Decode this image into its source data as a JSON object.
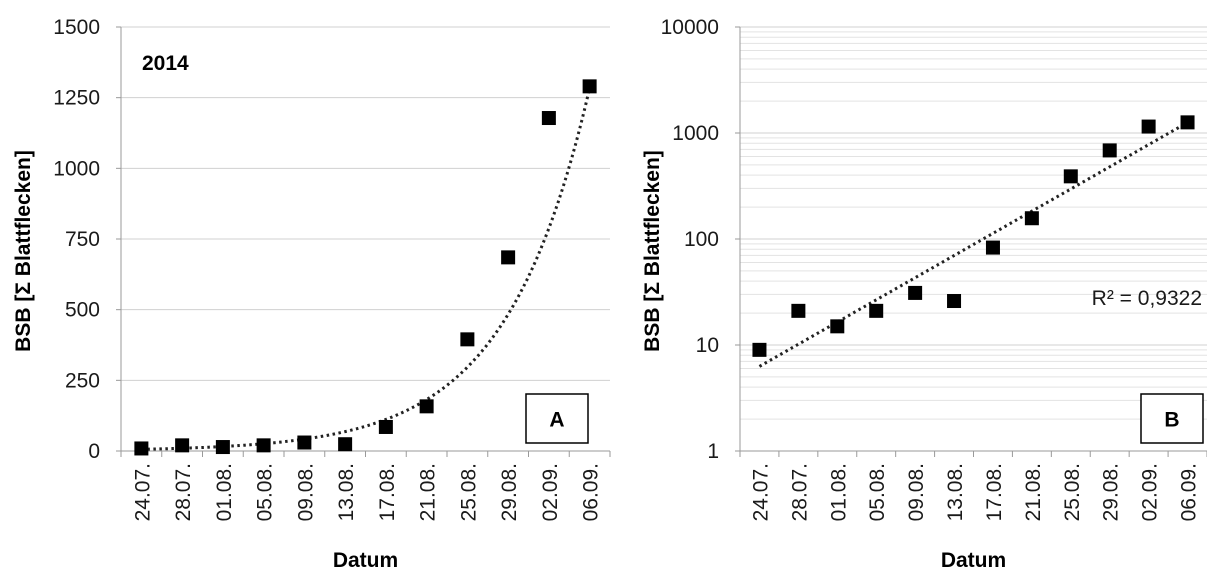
{
  "chart_data": [
    {
      "type": "scatter",
      "panel_label": "A",
      "annotation": "2014",
      "xlabel": "Datum",
      "ylabel": "BSB [Σ Blattflecken]",
      "y_scale": "linear",
      "ylim": [
        0,
        1500
      ],
      "y_ticks": [
        "0",
        "250",
        "500",
        "750",
        "1000",
        "1250",
        "1500"
      ],
      "grid": true,
      "trendline": {
        "type": "exponential",
        "style": "dotted"
      },
      "categories": [
        "24.07.",
        "28.07.",
        "01.08.",
        "05.08.",
        "09.08.",
        "13.08.",
        "17.08.",
        "21.08.",
        "25.08.",
        "29.08.",
        "02.09.",
        "06.09."
      ],
      "values": [
        9,
        20,
        14,
        20,
        30,
        24,
        85,
        158,
        395,
        685,
        1178,
        1290
      ]
    },
    {
      "type": "scatter",
      "panel_label": "B",
      "annotation": "R² = 0,9322",
      "xlabel": "Datum",
      "ylabel": "BSB [Σ Blattflecken]",
      "y_scale": "log",
      "ylim": [
        1,
        10000
      ],
      "y_ticks": [
        "1",
        "10",
        "100",
        "1000",
        "10000"
      ],
      "grid": true,
      "trendline": {
        "type": "exponential",
        "style": "dotted"
      },
      "categories": [
        "24.07.",
        "28.07.",
        "01.08.",
        "05.08.",
        "09.08.",
        "13.08.",
        "17.08.",
        "21.08.",
        "25.08.",
        "29.08.",
        "02.09.",
        "06.09."
      ],
      "values": [
        9,
        21,
        15,
        21,
        31,
        26,
        83,
        157,
        390,
        685,
        1150,
        1260
      ]
    }
  ]
}
